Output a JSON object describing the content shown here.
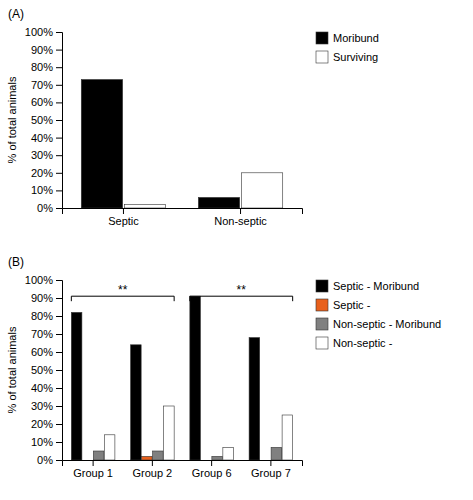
{
  "chart_data": [
    {
      "type": "bar",
      "title": "(A)",
      "ylabel": "% of total animals",
      "categories": [
        "Septic",
        "Non-septic"
      ],
      "series": [
        {
          "name": "Moribund",
          "color": "#000000",
          "values": [
            73,
            6
          ]
        },
        {
          "name": "Surviving",
          "color": "#ffffff",
          "values": [
            2,
            20
          ]
        }
      ],
      "ylim": [
        0,
        100
      ],
      "yticks": [
        {
          "value": 0,
          "label": "0%"
        },
        {
          "value": 10,
          "label": "10%"
        },
        {
          "value": 20,
          "label": "20%"
        },
        {
          "value": 30,
          "label": "30%"
        },
        {
          "value": 40,
          "label": "40%"
        },
        {
          "value": 50,
          "label": "50%"
        },
        {
          "value": 60,
          "label": "60%"
        },
        {
          "value": 70,
          "label": "70%"
        },
        {
          "value": 80,
          "label": "80%"
        },
        {
          "value": 90,
          "label": "90%"
        },
        {
          "value": 100,
          "label": "100%"
        }
      ],
      "legend": "right"
    },
    {
      "type": "bar",
      "title": "(B)",
      "ylabel": "% of total animals",
      "categories": [
        "Group 1",
        "Group 2",
        "Group 6",
        "Group 7"
      ],
      "series": [
        {
          "name": "Septic - Moribund",
          "color": "#000000",
          "values": [
            82,
            64,
            91,
            68
          ]
        },
        {
          "name": "Septic -",
          "color": "#e8601c",
          "values": [
            0,
            2,
            0,
            0
          ]
        },
        {
          "name": "Non-septic - Moribund",
          "color": "#808080",
          "values": [
            5,
            5,
            2,
            7
          ]
        },
        {
          "name": "Non-septic -",
          "color": "#ffffff",
          "values": [
            14,
            30,
            7,
            25
          ]
        }
      ],
      "ylim": [
        0,
        100
      ],
      "yticks": [
        {
          "value": 0,
          "label": "0%"
        },
        {
          "value": 10,
          "label": "10%"
        },
        {
          "value": 20,
          "label": "20%"
        },
        {
          "value": 30,
          "label": "30%"
        },
        {
          "value": 40,
          "label": "40%"
        },
        {
          "value": 50,
          "label": "50%"
        },
        {
          "value": 60,
          "label": "60%"
        },
        {
          "value": 70,
          "label": "70%"
        },
        {
          "value": 80,
          "label": "80%"
        },
        {
          "value": 90,
          "label": "90%"
        },
        {
          "value": 100,
          "label": "100%"
        }
      ],
      "legend": "right",
      "annotations": [
        {
          "text": "**",
          "from": "Group 1",
          "to": "Group 2",
          "y": 91
        },
        {
          "text": "**",
          "from": "Group 6",
          "to": "Group 7",
          "y": 91
        }
      ]
    }
  ]
}
